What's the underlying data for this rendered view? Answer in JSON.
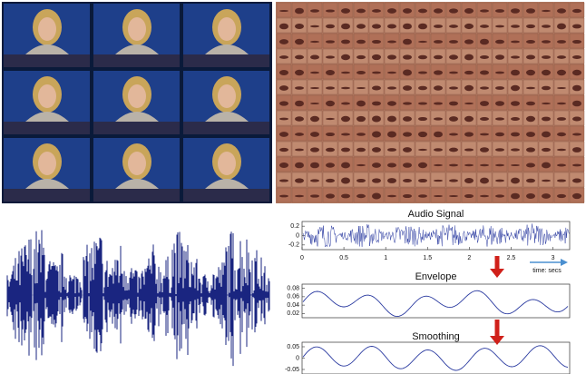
{
  "plots": [
    {
      "title": "Audio Signal",
      "ylim": [
        -0.3,
        0.3
      ],
      "yticks": [
        0.2,
        0,
        -0.2
      ],
      "xlim": [
        0,
        3.2
      ],
      "xticks": [
        0,
        0.5,
        1,
        1.5,
        2,
        2.5,
        3
      ],
      "xlabel": "time: secs"
    },
    {
      "title": "Envelope",
      "ylim": [
        0.01,
        0.09
      ],
      "yticks": [
        0.08,
        0.06,
        0.04,
        0.02
      ]
    },
    {
      "title": "Smoothing",
      "ylim": [
        -0.07,
        0.07
      ],
      "yticks": [
        0.05,
        0,
        -0.05
      ]
    }
  ]
}
